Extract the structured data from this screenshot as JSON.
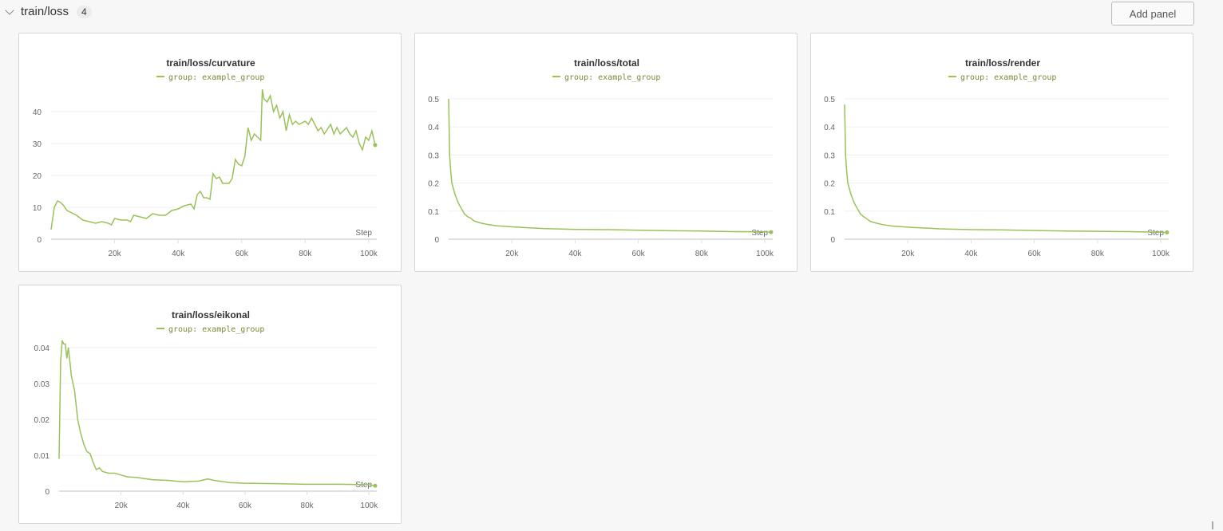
{
  "section": {
    "title": "train/loss",
    "count": "4",
    "add_panel_label": "Add panel"
  },
  "accent": "#9bc15a",
  "chart_data": [
    {
      "type": "line",
      "title": "train/loss/curvature",
      "legend": "group: example_group",
      "xlabel": "Step",
      "xlim": [
        0,
        102000
      ],
      "ylim": [
        0,
        48
      ],
      "yticks": [
        "0",
        "10",
        "20",
        "30",
        "40"
      ],
      "ytick_values": [
        0,
        10,
        20,
        30,
        40
      ],
      "xticks": [
        "20k",
        "40k",
        "60k",
        "80k",
        "100k"
      ],
      "xtick_values": [
        20000,
        40000,
        60000,
        80000,
        100000
      ],
      "x": [
        0,
        1000,
        2000,
        3000,
        4000,
        5000,
        6000,
        8000,
        10000,
        12000,
        14000,
        16000,
        18000,
        19000,
        20000,
        22000,
        24000,
        25000,
        26000,
        28000,
        30000,
        32000,
        34000,
        36000,
        38000,
        40000,
        42000,
        44000,
        45000,
        46000,
        47000,
        48000,
        49000,
        50000,
        51000,
        52000,
        53000,
        54000,
        56000,
        57000,
        58000,
        59000,
        60000,
        61000,
        62000,
        63000,
        64000,
        65000,
        66000,
        66500,
        67000,
        68000,
        69000,
        70000,
        71000,
        72000,
        73000,
        74000,
        75000,
        76000,
        77000,
        78000,
        80000,
        81000,
        82000,
        84000,
        85000,
        86000,
        88000,
        89000,
        90000,
        91000,
        93000,
        94000,
        95000,
        96000,
        97000,
        98000,
        99000,
        100000,
        101000,
        102000
      ],
      "y": [
        3,
        10,
        12,
        11.5,
        10.5,
        9,
        8.5,
        7.5,
        6,
        5.5,
        5,
        5.5,
        5,
        4.5,
        6.5,
        6,
        6,
        5.5,
        7.5,
        7,
        6.5,
        8,
        7.5,
        7.5,
        9,
        9.5,
        10.5,
        11,
        9.5,
        14,
        15,
        13,
        13,
        12.5,
        20.5,
        19,
        19.5,
        17.5,
        17.5,
        19,
        25,
        23.5,
        23,
        26,
        35,
        31,
        33,
        32,
        31,
        47,
        44,
        43,
        45,
        40,
        42,
        38,
        40,
        34,
        39,
        36,
        37,
        36,
        37,
        36,
        38,
        34,
        35,
        33,
        36,
        33,
        35,
        33,
        35,
        33,
        32,
        34,
        30,
        28,
        32,
        31,
        34,
        29.5
      ]
    },
    {
      "type": "line",
      "title": "train/loss/total",
      "legend": "group: example_group",
      "xlabel": "Step",
      "xlim": [
        0,
        102000
      ],
      "ylim": [
        0,
        0.5
      ],
      "yticks": [
        "0",
        "0.1",
        "0.2",
        "0.3",
        "0.4",
        "0.5"
      ],
      "ytick_values": [
        0,
        0.1,
        0.2,
        0.3,
        0.4,
        0.5
      ],
      "xticks": [
        "20k",
        "40k",
        "60k",
        "80k",
        "100k"
      ],
      "xtick_values": [
        20000,
        40000,
        60000,
        80000,
        100000
      ],
      "x": [
        0,
        300,
        600,
        1000,
        2000,
        3000,
        4000,
        5000,
        6000,
        7000,
        8000,
        10000,
        12000,
        15000,
        20000,
        25000,
        30000,
        40000,
        50000,
        60000,
        70000,
        80000,
        90000,
        100000,
        102000
      ],
      "y": [
        0.5,
        0.3,
        0.25,
        0.2,
        0.16,
        0.13,
        0.11,
        0.09,
        0.08,
        0.075,
        0.065,
        0.058,
        0.053,
        0.048,
        0.044,
        0.041,
        0.038,
        0.035,
        0.034,
        0.032,
        0.03,
        0.029,
        0.027,
        0.026,
        0.025
      ]
    },
    {
      "type": "line",
      "title": "train/loss/render",
      "legend": "group: example_group",
      "xlabel": "Step",
      "xlim": [
        0,
        102000
      ],
      "ylim": [
        0,
        0.5
      ],
      "yticks": [
        "0",
        "0.1",
        "0.2",
        "0.3",
        "0.4",
        "0.5"
      ],
      "ytick_values": [
        0,
        0.1,
        0.2,
        0.3,
        0.4,
        0.5
      ],
      "xticks": [
        "20k",
        "40k",
        "60k",
        "80k",
        "100k"
      ],
      "xtick_values": [
        20000,
        40000,
        60000,
        80000,
        100000
      ],
      "x": [
        0,
        300,
        600,
        1000,
        2000,
        3000,
        4000,
        5000,
        6000,
        7000,
        8000,
        10000,
        12000,
        15000,
        20000,
        25000,
        30000,
        40000,
        50000,
        60000,
        70000,
        80000,
        90000,
        100000,
        102000
      ],
      "y": [
        0.48,
        0.3,
        0.25,
        0.2,
        0.16,
        0.13,
        0.11,
        0.09,
        0.08,
        0.073,
        0.064,
        0.057,
        0.052,
        0.047,
        0.043,
        0.04,
        0.037,
        0.034,
        0.033,
        0.031,
        0.029,
        0.028,
        0.027,
        0.025,
        0.024
      ]
    },
    {
      "type": "line",
      "title": "train/loss/eikonal",
      "legend": "group: example_group",
      "xlabel": "Step",
      "xlim": [
        0,
        102000
      ],
      "ylim": [
        0,
        0.042
      ],
      "yticks": [
        "0",
        "0.01",
        "0.02",
        "0.03",
        "0.04"
      ],
      "ytick_values": [
        0,
        0.01,
        0.02,
        0.03,
        0.04
      ],
      "xticks": [
        "20k",
        "40k",
        "60k",
        "80k",
        "100k"
      ],
      "xtick_values": [
        20000,
        40000,
        60000,
        80000,
        100000
      ],
      "x": [
        0,
        500,
        1000,
        1500,
        2000,
        2500,
        3000,
        3500,
        4000,
        5000,
        6000,
        7000,
        8000,
        9000,
        10000,
        11000,
        12000,
        13000,
        14000,
        16000,
        18000,
        20000,
        22000,
        25000,
        30000,
        35000,
        40000,
        45000,
        48000,
        50000,
        55000,
        60000,
        70000,
        80000,
        90000,
        100000,
        102000
      ],
      "y": [
        0.009,
        0.036,
        0.042,
        0.041,
        0.041,
        0.037,
        0.04,
        0.036,
        0.032,
        0.028,
        0.02,
        0.016,
        0.013,
        0.011,
        0.0105,
        0.008,
        0.006,
        0.0065,
        0.0055,
        0.005,
        0.005,
        0.0045,
        0.004,
        0.0038,
        0.0032,
        0.003,
        0.0026,
        0.0028,
        0.0034,
        0.003,
        0.0024,
        0.0022,
        0.0021,
        0.0019,
        0.0019,
        0.0018,
        0.0015
      ]
    }
  ]
}
